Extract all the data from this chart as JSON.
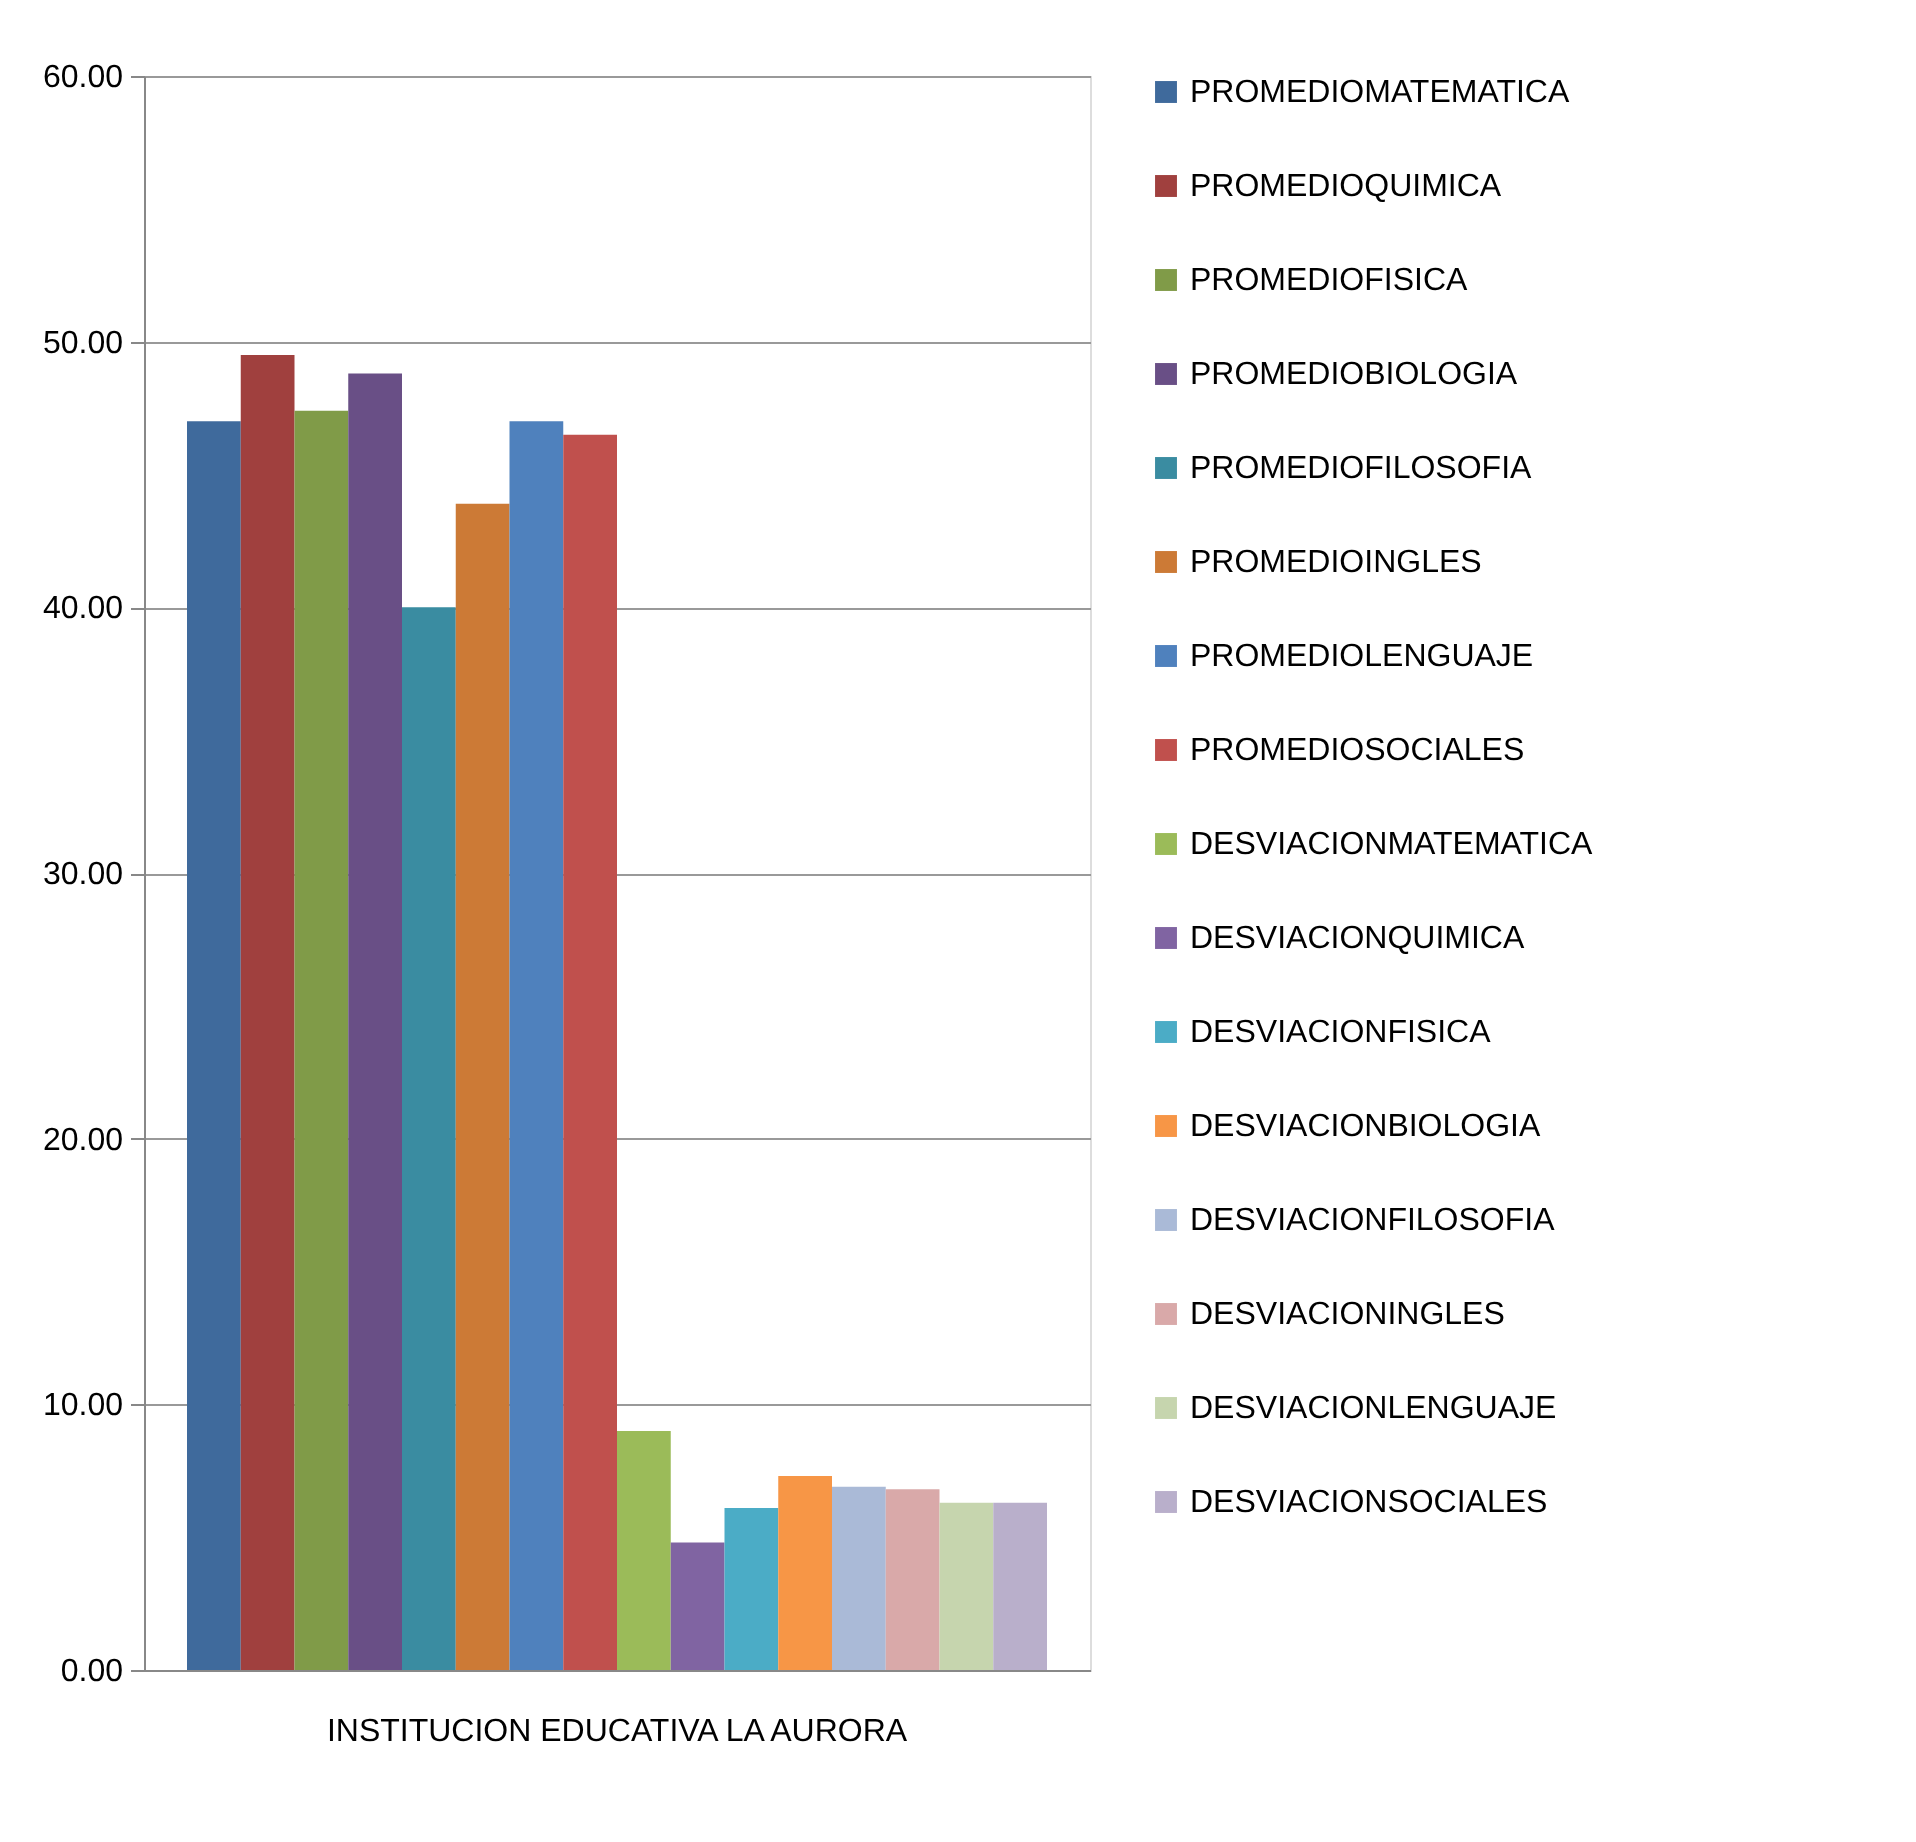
{
  "chart_data": {
    "type": "bar",
    "categories": [
      "INSTITUCION EDUCATIVA LA AURORA"
    ],
    "series": [
      {
        "name": "PROMEDIOMATEMATICA",
        "color": "#3f6a9c",
        "values": [
          47.0
        ]
      },
      {
        "name": "PROMEDIOQUIMICA",
        "color": "#a0403e",
        "values": [
          49.5
        ]
      },
      {
        "name": "PROMEDIOFISICA",
        "color": "#809b48",
        "values": [
          47.4
        ]
      },
      {
        "name": "PROMEDIOBIOLOGIA",
        "color": "#694f86",
        "values": [
          48.8
        ]
      },
      {
        "name": "PROMEDIOFILOSOFIA",
        "color": "#3a8ca1",
        "values": [
          40.0
        ]
      },
      {
        "name": "PROMEDIOINGLES",
        "color": "#cc7a36",
        "values": [
          43.9
        ]
      },
      {
        "name": "PROMEDIOLENGUAJE",
        "color": "#4f81bd",
        "values": [
          47.0
        ]
      },
      {
        "name": "PROMEDIOSOCIALES",
        "color": "#c0504d",
        "values": [
          46.5
        ]
      },
      {
        "name": "DESVIACIONMATEMATICA",
        "color": "#9bbb59",
        "values": [
          9.0
        ]
      },
      {
        "name": "DESVIACIONQUIMICA",
        "color": "#8064a2",
        "values": [
          4.8
        ]
      },
      {
        "name": "DESVIACIONFISICA",
        "color": "#4bacc6",
        "values": [
          6.1
        ]
      },
      {
        "name": "DESVIACIONBIOLOGIA",
        "color": "#f79646",
        "values": [
          7.3
        ]
      },
      {
        "name": "DESVIACIONFILOSOFIA",
        "color": "#aabad7",
        "values": [
          6.9
        ]
      },
      {
        "name": "DESVIACIONINGLES",
        "color": "#d9a9a9",
        "values": [
          6.8
        ]
      },
      {
        "name": "DESVIACIONLENGUAJE",
        "color": "#c6d5ae",
        "values": [
          6.3
        ]
      },
      {
        "name": "DESVIACIONSOCIALES",
        "color": "#b9afcb",
        "values": [
          6.3
        ]
      }
    ],
    "ylim": [
      0,
      60
    ],
    "yticks": [
      {
        "value": 0,
        "label": "0.00"
      },
      {
        "value": 10,
        "label": "10.00"
      },
      {
        "value": 20,
        "label": "20.00"
      },
      {
        "value": 30,
        "label": "30.00"
      },
      {
        "value": 40,
        "label": "40.00"
      },
      {
        "value": 50,
        "label": "50.00"
      },
      {
        "value": 60,
        "label": "60.00"
      }
    ],
    "grid": "y",
    "legend": "right"
  }
}
